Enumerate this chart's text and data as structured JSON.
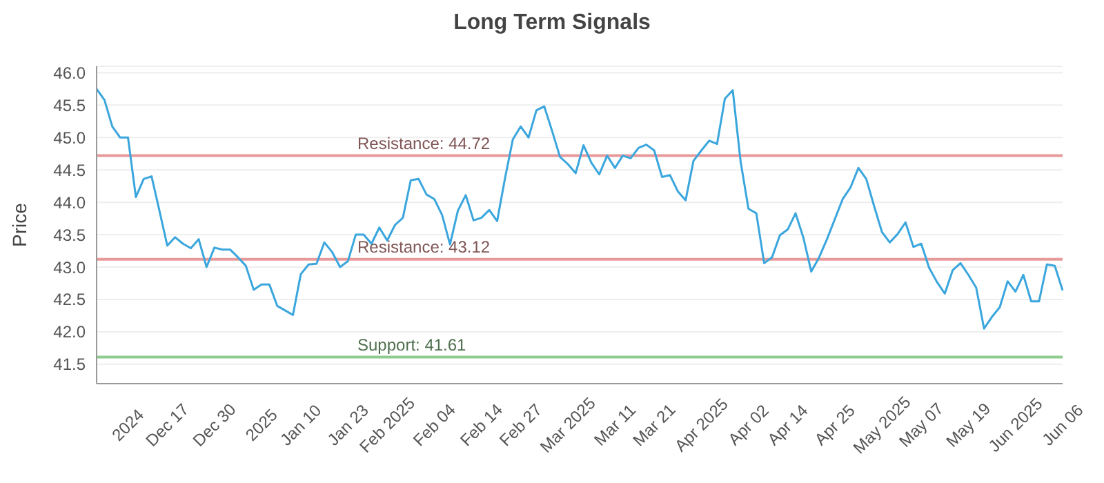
{
  "chart_data": {
    "type": "line",
    "title": "Long Term Signals",
    "ylabel": "Price",
    "categories": [
      null,
      null,
      null,
      null,
      "2024",
      null,
      null,
      null,
      null,
      "Dec 17",
      null,
      null,
      null,
      null,
      null,
      "Dec 30",
      null,
      null,
      null,
      null,
      null,
      "2025",
      null,
      null,
      null,
      null,
      "Jan 10",
      null,
      null,
      null,
      null,
      null,
      "Jan 23",
      null,
      null,
      null,
      null,
      "Feb 2025",
      null,
      null,
      null,
      null,
      null,
      "Feb 04",
      null,
      null,
      null,
      null,
      null,
      "Feb 14",
      null,
      null,
      null,
      null,
      "Feb 27",
      null,
      null,
      null,
      null,
      null,
      "Mar 2025",
      null,
      null,
      null,
      null,
      null,
      "Mar 11",
      null,
      null,
      null,
      null,
      "Mar 21",
      null,
      null,
      null,
      null,
      null,
      "Apr 2025",
      null,
      null,
      null,
      null,
      null,
      "Apr 02",
      null,
      null,
      null,
      null,
      "Apr 14",
      null,
      null,
      null,
      null,
      null,
      "Apr 25",
      null,
      null,
      null,
      null,
      null,
      "May 2025",
      null,
      null,
      null,
      null,
      "May 07",
      null,
      null,
      null,
      null,
      null,
      "May 19",
      null,
      null,
      null,
      null,
      null,
      "Jun 2025",
      null,
      null,
      null,
      null,
      null,
      "Jun 06"
    ],
    "series": [
      {
        "color": "#3aa6dd",
        "values": [
          45.75,
          45.58,
          45.17,
          45.0,
          45.0,
          44.08,
          44.36,
          44.4,
          43.87,
          43.33,
          43.46,
          43.36,
          43.29,
          43.43,
          43.0,
          43.3,
          43.27,
          43.27,
          43.15,
          43.02,
          42.65,
          42.73,
          42.73,
          42.4,
          42.33,
          42.26,
          42.89,
          43.04,
          43.05,
          43.38,
          43.23,
          43.0,
          43.09,
          43.5,
          43.5,
          43.36,
          43.61,
          43.41,
          43.65,
          43.76,
          44.34,
          44.36,
          44.12,
          44.05,
          43.8,
          43.35,
          43.87,
          44.11,
          43.72,
          43.76,
          43.88,
          43.71,
          44.37,
          44.97,
          45.17,
          45.0,
          45.42,
          45.48,
          45.1,
          44.7,
          44.59,
          44.45,
          44.88,
          44.61,
          44.43,
          44.72,
          44.53,
          44.72,
          44.68,
          44.84,
          44.89,
          44.8,
          44.39,
          44.42,
          44.17,
          44.03,
          44.64,
          44.8,
          44.95,
          44.9,
          45.6,
          45.73,
          44.63,
          43.9,
          43.83,
          43.06,
          43.15,
          43.49,
          43.58,
          43.83,
          43.45,
          42.93,
          43.15,
          43.43,
          43.74,
          44.05,
          44.23,
          44.53,
          44.36,
          43.94,
          43.54,
          43.38,
          43.51,
          43.69,
          43.31,
          43.36,
          42.99,
          42.77,
          42.59,
          42.95,
          43.06,
          42.88,
          42.68,
          42.05,
          42.23,
          42.38,
          42.78,
          42.62,
          42.88,
          42.47,
          42.47,
          43.04,
          43.02,
          42.64
        ]
      }
    ],
    "ylim": [
      41.2,
      46.1
    ],
    "yticks": [
      41.5,
      {
        "value": 42,
        "label": "42.0"
      },
      42.5,
      {
        "value": 43,
        "label": "43.0"
      },
      43.5,
      {
        "value": 44,
        "label": "44.0"
      },
      44.5,
      {
        "value": 45,
        "label": "45.0"
      },
      45.5,
      {
        "value": 46,
        "label": "46.0"
      }
    ],
    "ref_lines": [
      {
        "axis": "y",
        "value": 44.72,
        "label": "Resistance: 44.72",
        "color": "#e89a9a"
      },
      {
        "axis": "y",
        "value": 43.12,
        "label": "Resistance: 43.12",
        "color": "#e89a9a"
      },
      {
        "axis": "y",
        "value": 41.61,
        "label": "Support: 41.61",
        "color": "#8fcc8f"
      }
    ],
    "grid": "y",
    "legend": false,
    "marker": "none",
    "line_style": "solid"
  }
}
